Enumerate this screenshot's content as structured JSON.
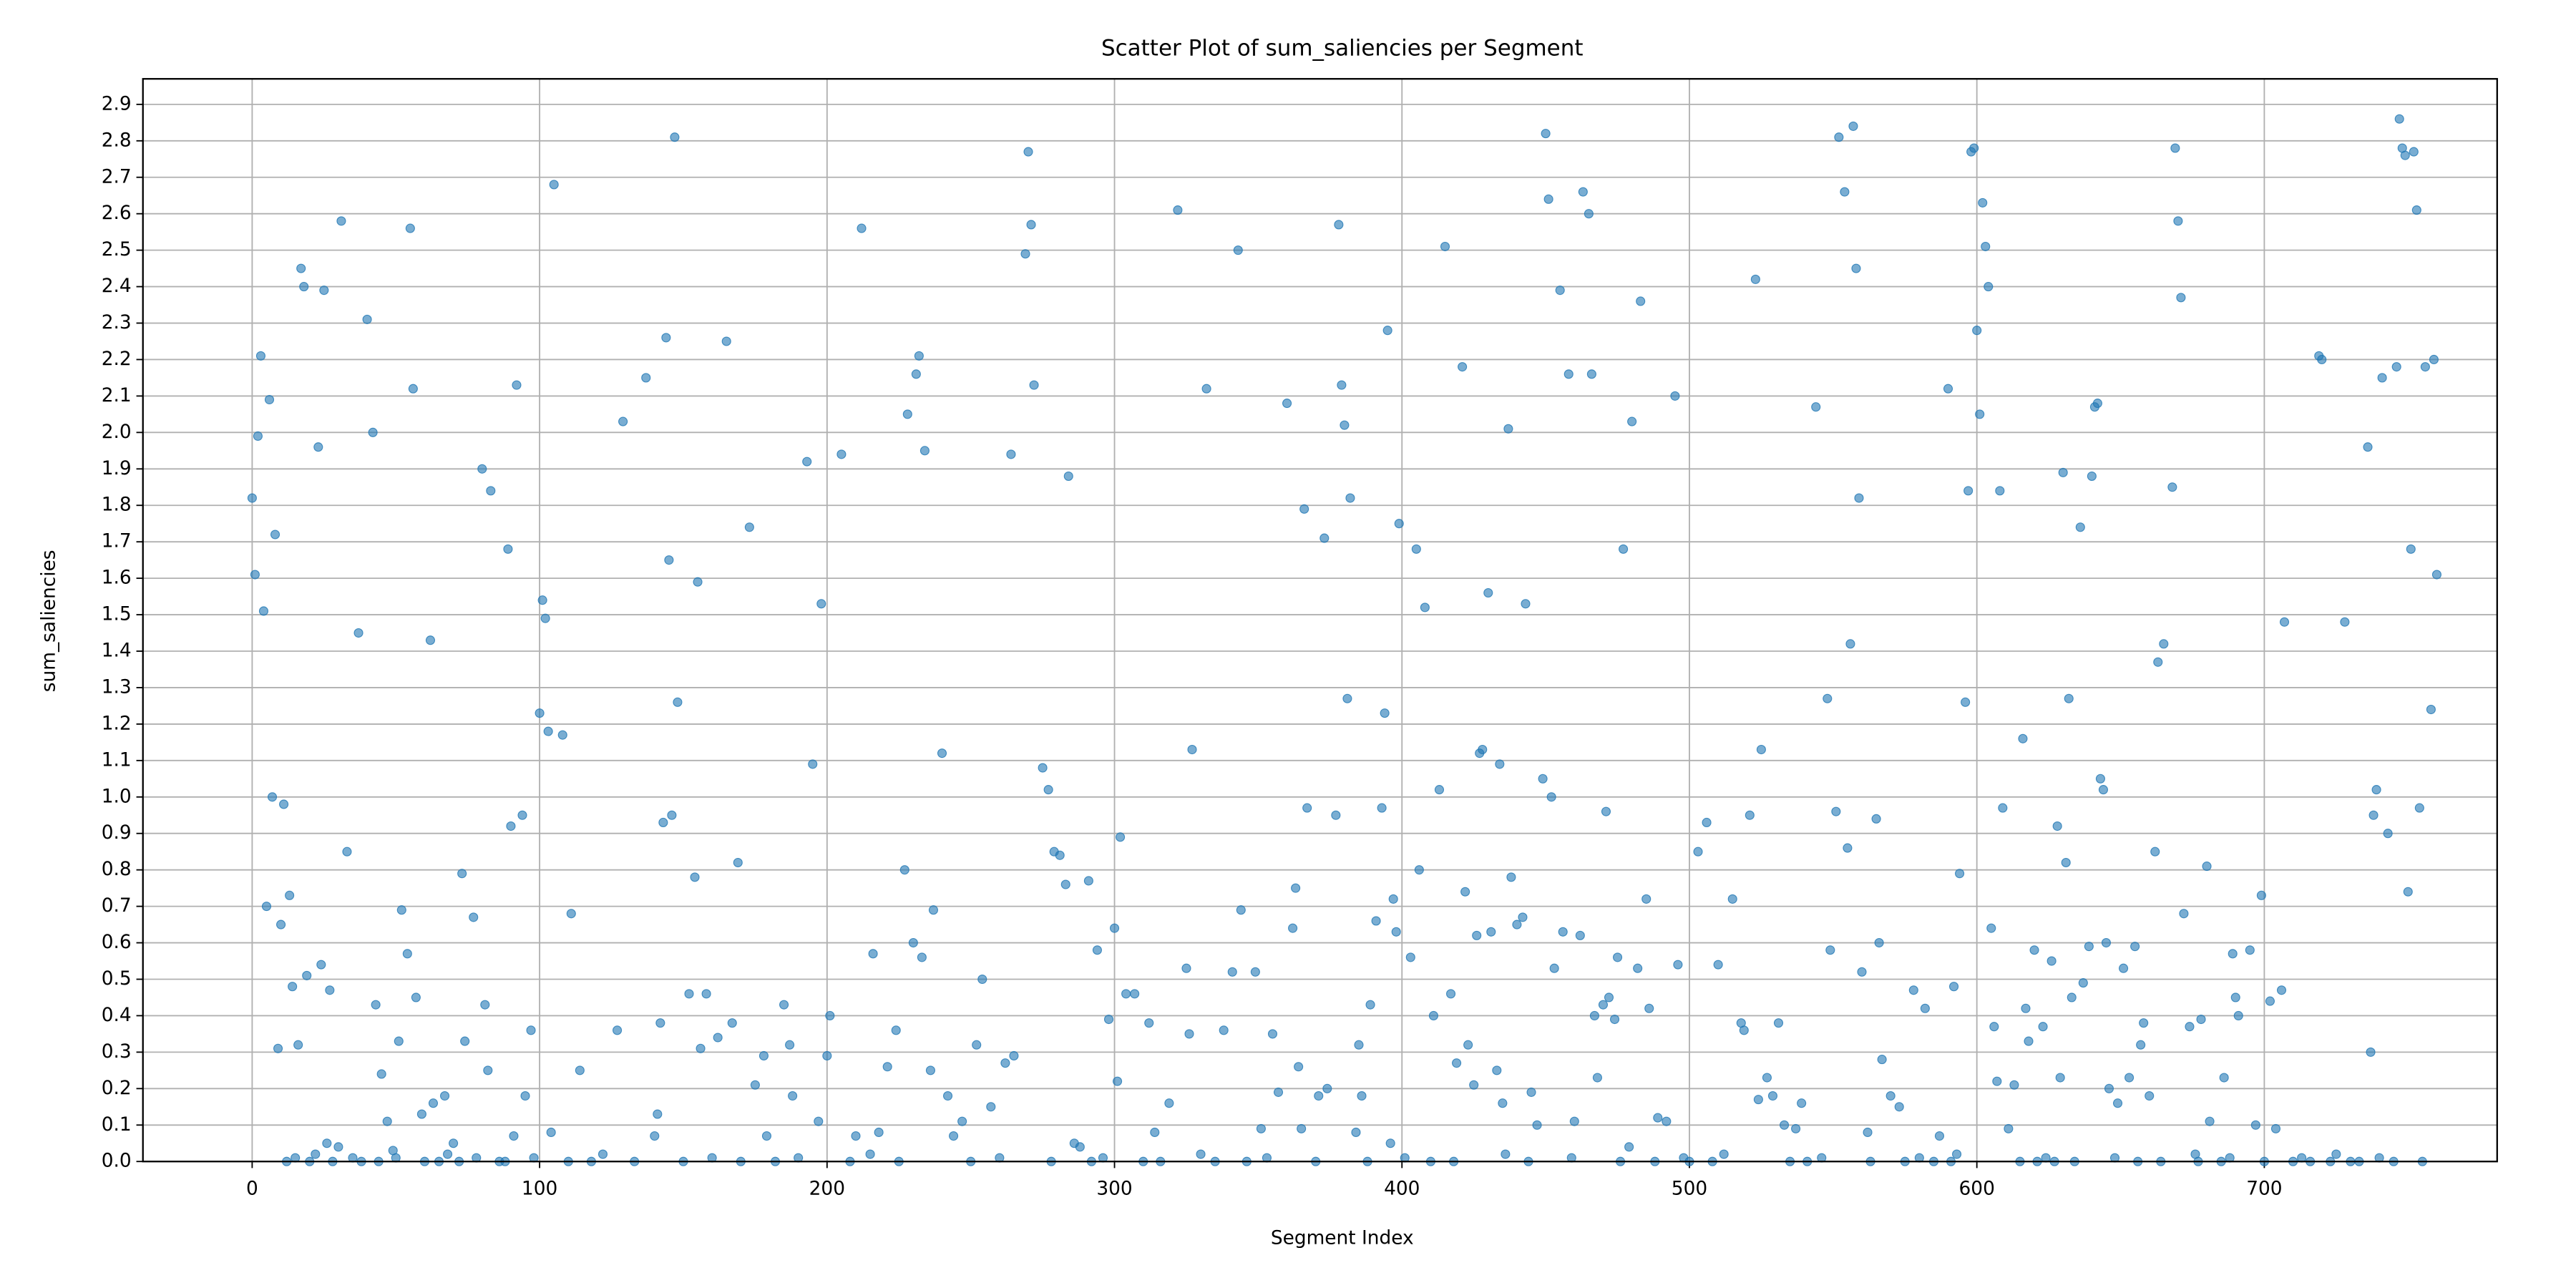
{
  "chart_data": {
    "type": "scatter",
    "title": "Scatter Plot of sum_saliencies per Segment",
    "x_label": "Segment Index",
    "y_label": "sum_saliencies",
    "color": "#1f77b4",
    "grid": true,
    "xlim": [
      -38,
      781
    ],
    "ylim": [
      0,
      2.97
    ],
    "xticks": [
      0,
      100,
      200,
      300,
      400,
      500,
      600,
      700
    ],
    "yticks": [
      {
        "value": 0,
        "label": "0.0"
      },
      0.1,
      0.2,
      0.3,
      0.4,
      0.5,
      0.6,
      0.7,
      0.8,
      0.9,
      {
        "value": 1,
        "label": "1.0"
      },
      1.1,
      1.2,
      1.3,
      1.4,
      1.5,
      1.6,
      1.7,
      1.8,
      1.9,
      {
        "value": 2,
        "label": "2.0"
      },
      2.1,
      2.2,
      2.3,
      2.4,
      2.5,
      2.6,
      2.7,
      2.8,
      2.9
    ],
    "x": [
      0,
      1,
      2,
      3,
      4,
      5,
      6,
      7,
      8,
      9,
      10,
      11,
      13,
      14,
      16,
      17,
      18,
      19,
      23,
      24,
      25,
      26,
      27,
      30,
      31,
      33,
      37,
      40,
      42,
      43,
      45,
      47,
      49,
      51,
      52,
      54,
      55,
      56,
      57,
      59,
      62,
      63,
      67,
      70,
      73,
      74,
      77,
      81,
      80,
      82,
      83,
      89,
      90,
      91,
      92,
      94,
      95,
      97,
      100,
      101,
      102,
      103,
      104,
      105,
      108,
      111,
      114,
      127,
      129,
      137,
      140,
      141,
      142,
      143,
      144,
      145,
      146,
      147,
      148,
      152,
      154,
      155,
      156,
      158,
      162,
      165,
      167,
      169,
      173,
      175,
      178,
      179,
      185,
      187,
      188,
      193,
      195,
      197,
      198,
      201,
      200,
      205,
      210,
      212,
      216,
      218,
      221,
      224,
      227,
      228,
      230,
      231,
      232,
      233,
      234,
      237,
      236,
      240,
      242,
      244,
      247,
      252,
      254,
      257,
      262,
      264,
      265,
      269,
      270,
      271,
      272,
      275,
      277,
      279,
      281,
      283,
      284,
      286,
      288,
      291,
      294,
      298,
      300,
      301,
      302,
      304,
      307,
      312,
      314,
      319,
      322,
      325,
      326,
      327,
      332,
      338,
      341,
      343,
      344,
      349,
      351,
      355,
      357,
      360,
      362,
      363,
      364,
      365,
      366,
      367,
      371,
      373,
      374,
      377,
      378,
      379,
      380,
      381,
      382,
      384,
      385,
      386,
      389,
      391,
      393,
      394,
      395,
      396,
      397,
      398,
      399,
      403,
      405,
      406,
      408,
      411,
      413,
      415,
      417,
      419,
      421,
      422,
      423,
      425,
      426,
      427,
      428,
      430,
      431,
      433,
      434,
      435,
      437,
      438,
      440,
      442,
      443,
      445,
      447,
      449,
      450,
      451,
      452,
      453,
      455,
      456,
      458,
      460,
      462,
      463,
      465,
      466,
      467,
      468,
      470,
      471,
      472,
      474,
      475,
      477,
      479,
      480,
      482,
      483,
      485,
      486,
      489,
      492,
      495,
      496,
      503,
      506,
      510,
      515,
      518,
      519,
      521,
      523,
      524,
      525,
      527,
      529,
      531,
      533,
      537,
      539,
      544,
      548,
      549,
      551,
      552,
      554,
      555,
      556,
      557,
      558,
      559,
      560,
      562,
      565,
      566,
      567,
      570,
      573,
      578,
      582,
      587,
      590,
      592,
      594,
      596,
      597,
      598,
      599,
      600,
      601,
      602,
      603,
      604,
      605,
      606,
      607,
      608,
      609,
      611,
      613,
      616,
      617,
      618,
      620,
      623,
      626,
      628,
      629,
      630,
      631,
      632,
      633,
      636,
      637,
      639,
      640,
      641,
      642,
      643,
      644,
      645,
      646,
      649,
      651,
      653,
      655,
      657,
      658,
      660,
      662,
      663,
      665,
      668,
      669,
      670,
      671,
      672,
      674,
      678,
      680,
      681,
      707,
      686,
      689,
      690,
      691,
      719,
      720,
      695,
      697,
      728,
      699,
      702,
      704,
      706,
      736,
      737,
      738,
      739,
      741,
      743,
      746,
      747,
      748,
      749,
      750,
      751,
      752,
      753,
      754,
      756,
      758,
      759,
      760,
      12,
      15,
      20,
      22,
      28,
      35,
      38,
      44,
      50,
      60,
      65,
      68,
      72,
      78,
      86,
      88,
      98,
      110,
      118,
      122,
      133,
      150,
      160,
      170,
      182,
      190,
      208,
      215,
      225,
      250,
      260,
      278,
      292,
      296,
      310,
      316,
      330,
      335,
      346,
      353,
      370,
      388,
      401,
      410,
      418,
      436,
      444,
      459,
      476,
      488,
      498,
      500,
      508,
      512,
      535,
      541,
      546,
      563,
      575,
      580,
      585,
      591,
      593,
      615,
      621,
      624,
      627,
      634,
      648,
      656,
      664,
      676,
      677,
      685,
      688,
      700,
      710,
      713,
      716,
      723,
      725,
      730,
      733,
      740,
      745,
      755
    ],
    "values": [
      1.82,
      1.61,
      1.99,
      2.21,
      1.51,
      0.7,
      2.09,
      1.0,
      1.72,
      0.31,
      0.65,
      0.98,
      0.73,
      0.48,
      0.32,
      2.45,
      2.4,
      0.51,
      1.96,
      0.54,
      2.39,
      0.05,
      0.47,
      0.04,
      2.58,
      0.85,
      1.45,
      2.31,
      2.0,
      0.43,
      0.24,
      0.11,
      0.03,
      0.33,
      0.69,
      0.57,
      2.56,
      2.12,
      0.45,
      0.13,
      1.43,
      0.16,
      0.18,
      0.05,
      0.79,
      0.33,
      0.67,
      0.43,
      1.9,
      0.25,
      1.84,
      1.68,
      0.92,
      0.07,
      2.13,
      0.95,
      0.18,
      0.36,
      1.23,
      1.54,
      1.49,
      1.18,
      0.08,
      2.68,
      1.17,
      0.68,
      0.25,
      0.36,
      2.03,
      2.15,
      0.07,
      0.13,
      0.38,
      0.93,
      2.26,
      1.65,
      0.95,
      2.81,
      1.26,
      0.46,
      0.78,
      1.59,
      0.31,
      0.46,
      0.34,
      2.25,
      0.38,
      0.82,
      1.74,
      0.21,
      0.29,
      0.07,
      0.43,
      0.32,
      0.18,
      1.92,
      1.09,
      0.11,
      1.53,
      0.4,
      0.29,
      1.94,
      0.07,
      2.56,
      0.57,
      0.08,
      0.26,
      0.36,
      0.8,
      2.05,
      0.6,
      2.16,
      2.21,
      0.56,
      1.95,
      0.69,
      0.25,
      1.12,
      0.18,
      0.07,
      0.11,
      0.32,
      0.5,
      0.15,
      0.27,
      1.94,
      0.29,
      2.49,
      2.77,
      2.57,
      2.13,
      1.08,
      1.02,
      0.85,
      0.84,
      0.76,
      1.88,
      0.05,
      0.04,
      0.77,
      0.58,
      0.39,
      0.64,
      0.22,
      0.89,
      0.46,
      0.46,
      0.38,
      0.08,
      0.16,
      2.61,
      0.53,
      0.35,
      1.13,
      2.12,
      0.36,
      0.52,
      2.5,
      0.69,
      0.52,
      0.09,
      0.35,
      0.19,
      2.08,
      0.64,
      0.75,
      0.26,
      0.09,
      1.79,
      0.97,
      0.18,
      1.71,
      0.2,
      0.95,
      2.57,
      2.13,
      2.02,
      1.27,
      1.82,
      0.08,
      0.32,
      0.18,
      0.43,
      0.66,
      0.97,
      1.23,
      2.28,
      0.05,
      0.72,
      0.63,
      1.75,
      0.56,
      1.68,
      0.8,
      1.52,
      0.4,
      1.02,
      2.51,
      0.46,
      0.27,
      2.18,
      0.74,
      0.32,
      0.21,
      0.62,
      1.12,
      1.13,
      1.56,
      0.63,
      0.25,
      1.09,
      0.16,
      2.01,
      0.78,
      0.65,
      0.67,
      1.53,
      0.19,
      0.1,
      1.05,
      2.82,
      2.64,
      1.0,
      0.53,
      2.39,
      0.63,
      2.16,
      0.11,
      0.62,
      2.66,
      2.6,
      2.16,
      0.4,
      0.23,
      0.43,
      0.96,
      0.45,
      0.39,
      0.56,
      1.68,
      0.04,
      2.03,
      0.53,
      2.36,
      0.72,
      0.42,
      0.12,
      0.11,
      2.1,
      0.54,
      0.85,
      0.93,
      0.54,
      0.72,
      0.38,
      0.36,
      0.95,
      2.42,
      0.17,
      1.13,
      0.23,
      0.18,
      0.38,
      0.1,
      0.09,
      0.16,
      2.07,
      1.27,
      0.58,
      0.96,
      2.81,
      2.66,
      0.86,
      1.42,
      2.84,
      2.45,
      1.82,
      0.52,
      0.08,
      0.94,
      0.6,
      0.28,
      0.18,
      0.15,
      0.47,
      0.42,
      0.07,
      2.12,
      0.48,
      0.79,
      1.26,
      1.84,
      2.77,
      2.78,
      2.28,
      2.05,
      2.63,
      2.51,
      2.4,
      0.64,
      0.37,
      0.22,
      1.84,
      0.97,
      0.09,
      0.21,
      1.16,
      0.42,
      0.33,
      0.58,
      0.37,
      0.55,
      0.92,
      0.23,
      1.89,
      0.82,
      1.27,
      0.45,
      1.74,
      0.49,
      0.59,
      1.88,
      2.07,
      2.08,
      1.05,
      1.02,
      0.6,
      0.2,
      0.16,
      0.53,
      0.23,
      0.59,
      0.32,
      0.38,
      0.18,
      0.85,
      1.37,
      1.42,
      1.85,
      2.78,
      2.58,
      2.37,
      0.68,
      0.37,
      0.39,
      0.81,
      0.11,
      1.48,
      0.23,
      0.57,
      0.45,
      0.4,
      2.21,
      2.2,
      0.58,
      0.1,
      1.48,
      0.73,
      0.44,
      0.09,
      0.47,
      1.96,
      0.3,
      0.95,
      1.02,
      2.15,
      0.9,
      2.18,
      2.86,
      2.78,
      2.76,
      0.74,
      1.68,
      2.77,
      2.61,
      0.97,
      2.18,
      1.24,
      2.2,
      1.61,
      0,
      0.01,
      0,
      0.02,
      0,
      0.01,
      0,
      0,
      0.01,
      0,
      0,
      0.02,
      0,
      0.01,
      0,
      0,
      0.01,
      0,
      0,
      0.02,
      0,
      0,
      0.01,
      0,
      0,
      0.01,
      0,
      0.02,
      0,
      0,
      0.01,
      0,
      0,
      0.01,
      0,
      0,
      0.02,
      0,
      0,
      0.01,
      0,
      0,
      0.01,
      0,
      0,
      0.02,
      0,
      0.01,
      0,
      0,
      0.01,
      0,
      0,
      0.02,
      0,
      0,
      0.01,
      0,
      0,
      0.01,
      0,
      0,
      0.02,
      0,
      0,
      0.01,
      0,
      0,
      0.01,
      0,
      0,
      0.02,
      0,
      0,
      0.01,
      0,
      0,
      0.01,
      0,
      0,
      0.02,
      0,
      0,
      0.01,
      0,
      0
    ]
  }
}
